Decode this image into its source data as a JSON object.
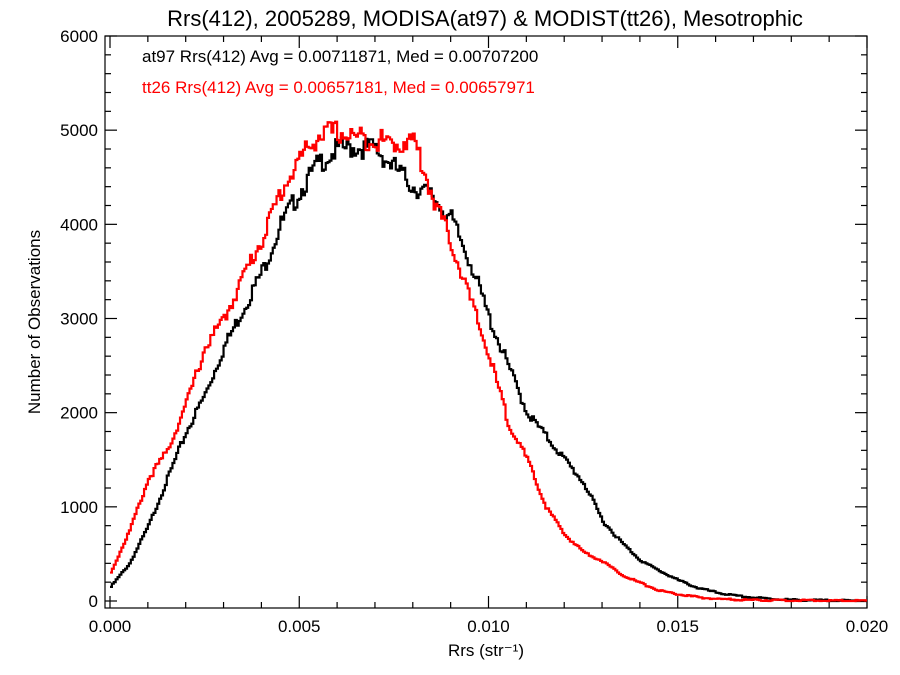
{
  "chart_data": {
    "type": "line",
    "style": "step-histogram",
    "title": "Rrs(412), 2005289, MODISA(at97) & MODIST(tt26), Mesotrophic",
    "xlabel": "Rrs (str⁻¹)",
    "ylabel": "Number of Observations",
    "xlim": [
      0.0,
      0.02
    ],
    "ylim": [
      0,
      6000
    ],
    "xticks": [
      0.0,
      0.005,
      0.01,
      0.015,
      0.02
    ],
    "xtick_labels": [
      "0.000",
      "0.005",
      "0.010",
      "0.015",
      "0.020"
    ],
    "yticks": [
      0,
      1000,
      2000,
      3000,
      4000,
      5000,
      6000
    ],
    "ytick_labels": [
      "0",
      "1000",
      "2000",
      "3000",
      "4000",
      "5000",
      "6000"
    ],
    "grid": false,
    "legend_position": "top-left",
    "series": [
      {
        "name": "at97",
        "label": "at97 Rrs(412) Avg = 0.00711871, Med = 0.00707200",
        "color": "#000000",
        "x": [
          0.0,
          0.0005,
          0.001,
          0.0015,
          0.002,
          0.0025,
          0.003,
          0.0035,
          0.004,
          0.0045,
          0.005,
          0.0055,
          0.006,
          0.0065,
          0.007,
          0.0075,
          0.008,
          0.0085,
          0.009,
          0.0095,
          0.01,
          0.0105,
          0.011,
          0.0115,
          0.012,
          0.0125,
          0.013,
          0.0135,
          0.014,
          0.0145,
          0.015,
          0.0155,
          0.016,
          0.0165,
          0.017,
          0.0175,
          0.018,
          0.0185,
          0.019,
          0.0195,
          0.02
        ],
        "y": [
          150,
          400,
          800,
          1300,
          1800,
          2200,
          2700,
          3100,
          3500,
          4000,
          4350,
          4650,
          4800,
          4820,
          4800,
          4600,
          4400,
          4300,
          4050,
          3600,
          3000,
          2500,
          2000,
          1750,
          1500,
          1250,
          850,
          620,
          430,
          320,
          220,
          140,
          90,
          55,
          35,
          22,
          12,
          8,
          5,
          3,
          2
        ]
      },
      {
        "name": "tt26",
        "label": "tt26 Rrs(412) Avg = 0.00657181, Med = 0.00657971",
        "color": "#ff0000",
        "x": [
          0.0,
          0.0005,
          0.001,
          0.0015,
          0.002,
          0.0025,
          0.003,
          0.0035,
          0.004,
          0.0045,
          0.005,
          0.0055,
          0.006,
          0.0065,
          0.007,
          0.0075,
          0.008,
          0.0085,
          0.009,
          0.0095,
          0.01,
          0.0105,
          0.011,
          0.0115,
          0.012,
          0.0125,
          0.013,
          0.0135,
          0.014,
          0.0145,
          0.015,
          0.0155,
          0.016,
          0.0165,
          0.017,
          0.0175,
          0.018,
          0.0185,
          0.019,
          0.0195,
          0.02
        ],
        "y": [
          300,
          750,
          1300,
          1600,
          2100,
          2700,
          3000,
          3450,
          3850,
          4350,
          4700,
          4950,
          4980,
          4920,
          4900,
          4850,
          4900,
          4300,
          3800,
          3200,
          2600,
          1900,
          1500,
          1000,
          700,
          520,
          420,
          280,
          190,
          110,
          70,
          40,
          22,
          14,
          10,
          8,
          6,
          4,
          3,
          2,
          1
        ]
      }
    ]
  }
}
